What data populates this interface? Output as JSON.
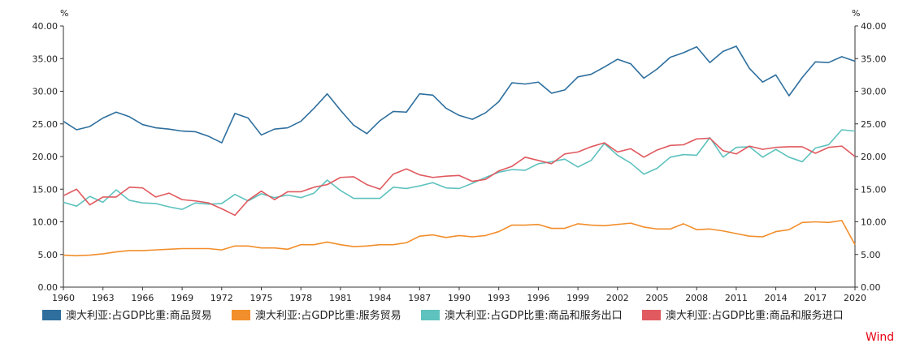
{
  "watermark": "Wind",
  "chart_data": {
    "type": "line",
    "left_unit": "%",
    "right_unit": "%",
    "ylim": [
      0,
      40
    ],
    "y_ticks": [
      "0.00",
      "5.00",
      "10.00",
      "15.00",
      "20.00",
      "25.00",
      "30.00",
      "35.00",
      "40.00"
    ],
    "x_ticks": [
      "1960",
      "1963",
      "1966",
      "1969",
      "1972",
      "1975",
      "1978",
      "1981",
      "1984",
      "1987",
      "1990",
      "1993",
      "1996",
      "1999",
      "2002",
      "2005",
      "2008",
      "2011",
      "2014",
      "2017",
      "2020"
    ],
    "x": [
      1960,
      1961,
      1962,
      1963,
      1964,
      1965,
      1966,
      1967,
      1968,
      1969,
      1970,
      1971,
      1972,
      1973,
      1974,
      1975,
      1976,
      1977,
      1978,
      1979,
      1980,
      1981,
      1982,
      1983,
      1984,
      1985,
      1986,
      1987,
      1988,
      1989,
      1990,
      1991,
      1992,
      1993,
      1994,
      1995,
      1996,
      1997,
      1998,
      1999,
      2000,
      2001,
      2002,
      2003,
      2004,
      2005,
      2006,
      2007,
      2008,
      2009,
      2010,
      2011,
      2012,
      2013,
      2014,
      2015,
      2016,
      2017,
      2018,
      2019,
      2020
    ],
    "grid": false,
    "legend_position": "bottom",
    "series": [
      {
        "name": "澳大利亚:占GDP比重:商品贸易",
        "color": "#2e6f9e",
        "values": [
          25.4,
          24.1,
          24.6,
          25.9,
          26.8,
          26.1,
          24.9,
          24.4,
          24.2,
          23.9,
          23.8,
          23.1,
          22.1,
          26.6,
          25.9,
          23.3,
          24.2,
          24.4,
          25.4,
          27.4,
          29.6,
          27.1,
          24.8,
          23.5,
          25.5,
          26.9,
          26.8,
          29.6,
          29.4,
          27.4,
          26.3,
          25.7,
          26.7,
          28.4,
          31.3,
          31.1,
          31.4,
          29.7,
          30.2,
          32.2,
          32.6,
          33.7,
          34.9,
          34.2,
          32.0,
          33.4,
          35.2,
          35.9,
          36.8,
          34.4,
          36.1,
          36.9,
          33.5,
          31.4,
          32.5,
          29.3,
          32.1,
          34.5,
          34.4,
          35.3,
          34.6
        ]
      },
      {
        "name": "澳大利亚:占GDP比重:服务贸易",
        "color": "#f28e2b",
        "values": [
          4.9,
          4.8,
          4.9,
          5.1,
          5.4,
          5.6,
          5.6,
          5.7,
          5.8,
          5.9,
          5.9,
          5.9,
          5.7,
          6.3,
          6.3,
          6.0,
          6.0,
          5.8,
          6.5,
          6.5,
          6.9,
          6.5,
          6.2,
          6.3,
          6.5,
          6.5,
          6.8,
          7.8,
          8.0,
          7.6,
          7.9,
          7.7,
          7.9,
          8.5,
          9.5,
          9.5,
          9.6,
          9.0,
          9.0,
          9.7,
          9.5,
          9.4,
          9.6,
          9.8,
          9.2,
          8.9,
          8.9,
          9.7,
          8.8,
          8.9,
          8.6,
          8.2,
          7.8,
          7.7,
          8.5,
          8.8,
          9.9,
          10.0,
          9.9,
          10.2,
          6.5
        ]
      },
      {
        "name": "澳大利亚:占GDP比重:商品和服务出口",
        "color": "#5ec2be",
        "values": [
          13.0,
          12.4,
          13.9,
          13.0,
          14.9,
          13.3,
          12.9,
          12.8,
          12.3,
          11.9,
          12.9,
          12.7,
          12.8,
          14.2,
          13.2,
          14.3,
          13.7,
          14.1,
          13.7,
          14.4,
          16.4,
          14.8,
          13.6,
          13.6,
          13.6,
          15.3,
          15.1,
          15.5,
          16.0,
          15.2,
          15.1,
          15.9,
          16.8,
          17.6,
          18.0,
          17.9,
          18.9,
          19.2,
          19.6,
          18.4,
          19.4,
          22.0,
          20.2,
          19.0,
          17.3,
          18.2,
          19.9,
          20.3,
          20.2,
          22.9,
          19.9,
          21.4,
          21.5,
          19.9,
          21.1,
          19.9,
          19.2,
          21.3,
          21.8,
          24.1,
          23.9
        ]
      },
      {
        "name": "澳大利亚:占GDP比重:商品和服务进口",
        "color": "#e05a5f",
        "values": [
          14.0,
          15.0,
          12.6,
          13.8,
          13.8,
          15.3,
          15.2,
          13.8,
          14.4,
          13.4,
          13.2,
          12.9,
          12.0,
          11.0,
          13.3,
          14.7,
          13.4,
          14.6,
          14.6,
          15.3,
          15.7,
          16.8,
          16.9,
          15.7,
          15.0,
          17.3,
          18.1,
          17.2,
          16.8,
          17.0,
          17.1,
          16.2,
          16.5,
          17.8,
          18.5,
          19.9,
          19.4,
          18.9,
          20.4,
          20.7,
          21.5,
          22.1,
          20.7,
          21.2,
          19.9,
          21.0,
          21.7,
          21.8,
          22.7,
          22.8,
          20.9,
          20.4,
          21.6,
          21.1,
          21.4,
          21.5,
          21.5,
          20.5,
          21.4,
          21.6,
          20.0
        ]
      }
    ]
  }
}
